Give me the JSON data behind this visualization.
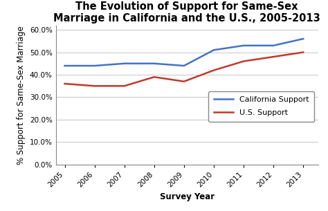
{
  "title": "The Evolution of Support for Same-Sex\nMarriage in California and the U.S., 2005-2013",
  "xlabel": "Survey Year",
  "ylabel": "% Support for Same-Sex Marriage",
  "years": [
    2005,
    2006,
    2007,
    2008,
    2009,
    2010,
    2011,
    2012,
    2013
  ],
  "california": [
    0.44,
    0.44,
    0.45,
    0.45,
    0.44,
    0.51,
    0.53,
    0.53,
    0.56
  ],
  "us": [
    0.36,
    0.35,
    0.35,
    0.39,
    0.37,
    0.42,
    0.46,
    0.48,
    0.5
  ],
  "california_color": "#4472C4",
  "us_color": "#C0392B",
  "california_label": "California Support",
  "us_label": "U.S. Support",
  "ylim": [
    0.0,
    0.62
  ],
  "yticks": [
    0.0,
    0.1,
    0.2,
    0.3,
    0.4,
    0.5,
    0.6
  ],
  "background_color": "#FFFFFF",
  "grid_color": "#BBBBBB",
  "title_fontsize": 10.5,
  "label_fontsize": 8.5,
  "tick_fontsize": 7.5,
  "legend_fontsize": 8,
  "linewidth": 1.8
}
